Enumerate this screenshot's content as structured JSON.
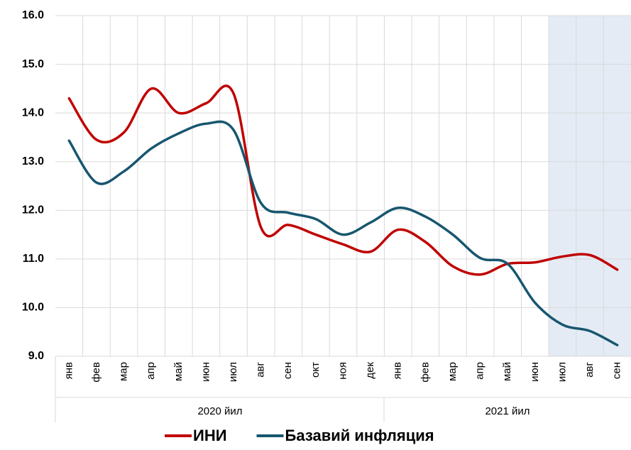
{
  "chart_data": {
    "type": "line",
    "categories": [
      "янв",
      "фев",
      "мар",
      "апр",
      "май",
      "июн",
      "июл",
      "авг",
      "сен",
      "окт",
      "ноя",
      "дек",
      "янв",
      "фев",
      "мар",
      "апр",
      "май",
      "июн",
      "июл",
      "авг",
      "сен"
    ],
    "groups": [
      "2020 йил",
      "2021 йил"
    ],
    "series": [
      {
        "name": "ИНИ",
        "color": "#c00000",
        "values": [
          14.3,
          13.45,
          13.6,
          14.5,
          14.0,
          14.2,
          14.4,
          11.65,
          11.7,
          11.5,
          11.3,
          11.15,
          11.6,
          11.35,
          10.85,
          10.68,
          10.9,
          10.93,
          11.05,
          11.08,
          10.78
        ]
      },
      {
        "name": "Базавий инфляция",
        "color": "#17566f",
        "values": [
          13.43,
          12.57,
          12.8,
          13.27,
          13.58,
          13.78,
          13.65,
          12.15,
          11.95,
          11.82,
          11.5,
          11.75,
          12.05,
          11.87,
          11.5,
          11.02,
          10.9,
          10.1,
          9.65,
          9.52,
          9.23
        ]
      }
    ],
    "ylim": [
      9,
      16
    ],
    "yticks": [
      {
        "value": 9,
        "label": "9.0"
      },
      {
        "value": 10,
        "label": "10.0"
      },
      {
        "value": 11,
        "label": "11.0"
      },
      {
        "value": 12,
        "label": "12.0"
      },
      {
        "value": 13,
        "label": "13.0"
      },
      {
        "value": 14,
        "label": "14.0"
      },
      {
        "value": 15,
        "label": "15.0"
      },
      {
        "value": 16,
        "label": "16.0"
      }
    ],
    "grid": true
  }
}
